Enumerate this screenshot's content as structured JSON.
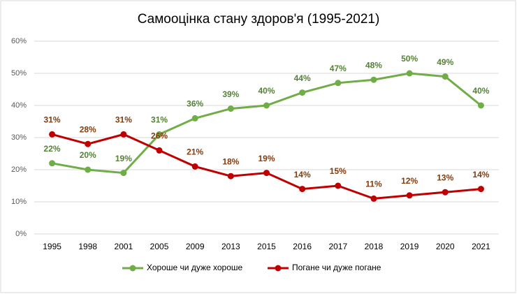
{
  "chart_data": {
    "type": "line",
    "title": "Самооцінка стану здоров'я (1995-2021)",
    "categories": [
      "1995",
      "1998",
      "2001",
      "2005",
      "2009",
      "2013",
      "2015",
      "2016",
      "2017",
      "2018",
      "2019",
      "2020",
      "2021"
    ],
    "series": [
      {
        "name": "Хороше чи дуже хороше",
        "color": "#70ad47",
        "label_color": "#548235",
        "values": [
          22,
          20,
          19,
          31,
          36,
          39,
          40,
          44,
          47,
          48,
          50,
          49,
          40
        ],
        "value_labels": [
          "22%",
          "20%",
          "19%",
          "31%",
          "36%",
          "39%",
          "40%",
          "44%",
          "47%",
          "48%",
          "50%",
          "49%",
          "40%"
        ]
      },
      {
        "name": "Погане чи дуже погане",
        "color": "#c00000",
        "label_color": "#843c0c",
        "values": [
          31,
          28,
          31,
          26,
          21,
          18,
          19,
          14,
          15,
          11,
          12,
          13,
          14
        ],
        "value_labels": [
          "31%",
          "28%",
          "31%",
          "26%",
          "21%",
          "18%",
          "19%",
          "14%",
          "15%",
          "11%",
          "12%",
          "13%",
          "14%"
        ]
      }
    ],
    "ylim": [
      0,
      60
    ],
    "yticks": [
      {
        "value": 0,
        "label": "0%"
      },
      {
        "value": 10,
        "label": "10%"
      },
      {
        "value": 20,
        "label": "20%"
      },
      {
        "value": 30,
        "label": "30%"
      },
      {
        "value": 40,
        "label": "40%"
      },
      {
        "value": 50,
        "label": "50%"
      },
      {
        "value": 60,
        "label": "60%"
      }
    ],
    "grid": true,
    "legend": "bottom"
  }
}
